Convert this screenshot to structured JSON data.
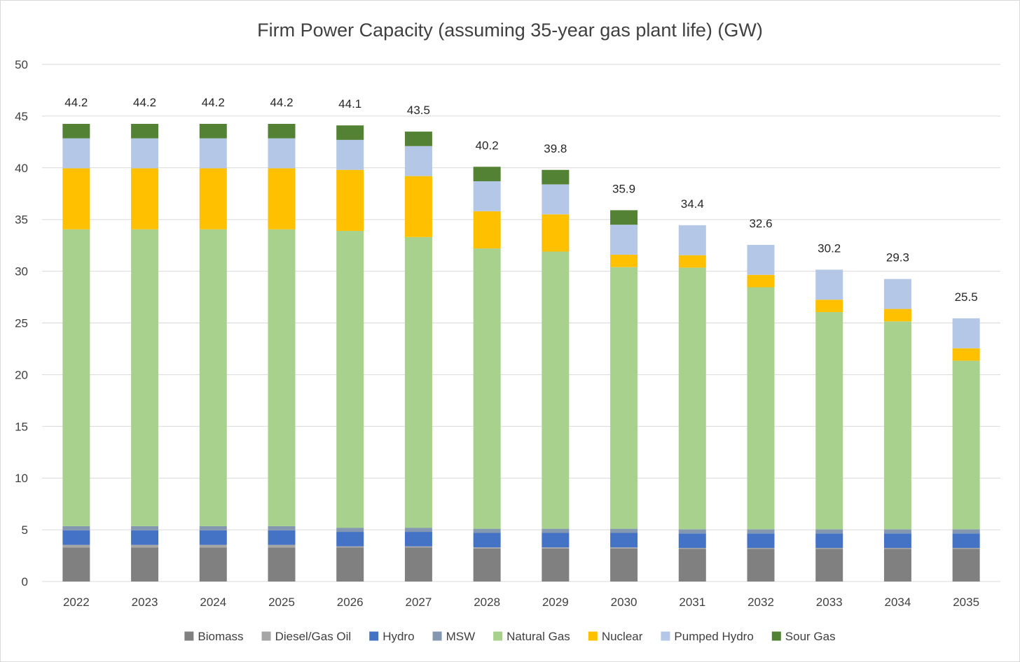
{
  "chart_data": {
    "type": "bar",
    "stacked": true,
    "title": "Firm Power Capacity (assuming 35-year gas plant life) (GW)",
    "xlabel": "",
    "ylabel": "",
    "ylim": [
      0,
      50
    ],
    "yticks": [
      0,
      5,
      10,
      15,
      20,
      25,
      30,
      35,
      40,
      45,
      50
    ],
    "grid": true,
    "legend_position": "bottom",
    "categories": [
      "2022",
      "2023",
      "2024",
      "2025",
      "2026",
      "2027",
      "2028",
      "2029",
      "2030",
      "2031",
      "2032",
      "2033",
      "2034",
      "2035"
    ],
    "series": [
      {
        "name": "Biomass",
        "color": "#808080",
        "values": [
          3.3,
          3.3,
          3.3,
          3.3,
          3.3,
          3.3,
          3.2,
          3.2,
          3.2,
          3.15,
          3.15,
          3.15,
          3.15,
          3.15
        ]
      },
      {
        "name": "Diesel/Gas Oil",
        "color": "#a6a6a6",
        "values": [
          0.25,
          0.25,
          0.25,
          0.25,
          0.1,
          0.1,
          0.1,
          0.1,
          0.1,
          0.1,
          0.1,
          0.1,
          0.1,
          0.1
        ]
      },
      {
        "name": "Hydro",
        "color": "#4472c4",
        "values": [
          1.4,
          1.4,
          1.4,
          1.4,
          1.4,
          1.4,
          1.4,
          1.4,
          1.4,
          1.4,
          1.4,
          1.4,
          1.4,
          1.4
        ]
      },
      {
        "name": "MSW",
        "color": "#8497b0",
        "values": [
          0.4,
          0.4,
          0.4,
          0.4,
          0.4,
          0.4,
          0.4,
          0.4,
          0.4,
          0.4,
          0.4,
          0.4,
          0.4,
          0.4
        ]
      },
      {
        "name": "Natural Gas",
        "color": "#a9d18e",
        "values": [
          28.7,
          28.7,
          28.7,
          28.7,
          28.7,
          28.1,
          27.1,
          26.8,
          25.3,
          25.3,
          23.4,
          21.0,
          20.1,
          16.3
        ]
      },
      {
        "name": "Nuclear",
        "color": "#ffc000",
        "values": [
          5.9,
          5.9,
          5.9,
          5.9,
          5.9,
          5.9,
          3.6,
          3.6,
          1.2,
          1.2,
          1.2,
          1.2,
          1.2,
          1.2
        ]
      },
      {
        "name": "Pumped Hydro",
        "color": "#b4c7e7",
        "values": [
          2.9,
          2.9,
          2.9,
          2.9,
          2.9,
          2.9,
          2.9,
          2.9,
          2.9,
          2.9,
          2.9,
          2.9,
          2.9,
          2.9
        ]
      },
      {
        "name": "Sour Gas",
        "color": "#548235",
        "values": [
          1.4,
          1.4,
          1.4,
          1.4,
          1.4,
          1.4,
          1.4,
          1.4,
          1.4,
          0,
          0,
          0,
          0,
          0
        ]
      }
    ],
    "totals": [
      "44.2",
      "44.2",
      "44.2",
      "44.2",
      "44.1",
      "43.5",
      "40.2",
      "39.8",
      "35.9",
      "34.4",
      "32.6",
      "30.2",
      "29.3",
      "25.5"
    ]
  }
}
